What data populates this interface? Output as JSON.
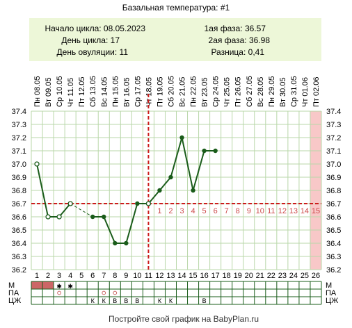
{
  "title": "Базальная температура: #1",
  "info": {
    "cycle_start": "Начало цикла: 08.05.2023",
    "cycle_day": "День цикла: 17",
    "ovulation_day": "День овуляции: 11",
    "phase1": "1ая фаза: 36.57",
    "phase2": "2ая фаза: 36.98",
    "difference": "Разница: 0,41"
  },
  "colors": {
    "line": "#1a5c1a",
    "panel": "#edf7d8",
    "grid": "#b9d7a9",
    "dashed": "#cc1c1c",
    "menstruation": "#cc6666",
    "highlight": "#f8c8c8",
    "phase_numbers": "#cc4a4a"
  },
  "chart_data": {
    "type": "line",
    "title": "Базальная температура: #1",
    "x": [
      1,
      2,
      3,
      4,
      5,
      6,
      7,
      8,
      9,
      10,
      11,
      12,
      13,
      14,
      15,
      16,
      17,
      18,
      19,
      20,
      21,
      22,
      23,
      24,
      25,
      26
    ],
    "dates": [
      "08.05",
      "09.05",
      "10.05",
      "11.05",
      "12.05",
      "13.05",
      "14.05",
      "15.05",
      "16.05",
      "17.05",
      "18.05",
      "19.05",
      "20.05",
      "21.05",
      "22.05",
      "23.05",
      "24.05",
      "25.05",
      "26.05",
      "27.05",
      "28.05",
      "29.05",
      "30.05",
      "31.05",
      "01.06",
      "02.06"
    ],
    "weekdays": [
      "Пн",
      "Вт",
      "Ср",
      "Чт",
      "Пт",
      "Сб",
      "Вс",
      "Пн",
      "Вт",
      "Ср",
      "Чт",
      "Пт",
      "Сб",
      "Вс",
      "Пн",
      "Вт",
      "Ср",
      "Чт",
      "Пт",
      "Сб",
      "Вс",
      "Пн",
      "Вт",
      "Ср",
      "Чт",
      "Пт"
    ],
    "values": [
      37.0,
      36.6,
      36.6,
      36.7,
      null,
      36.6,
      36.6,
      36.4,
      36.4,
      36.7,
      36.7,
      36.8,
      36.9,
      37.2,
      36.8,
      37.1,
      37.1,
      null,
      null,
      null,
      null,
      null,
      null,
      null,
      null,
      null
    ],
    "open_points": [
      1,
      2,
      3,
      4,
      11
    ],
    "dashed_segments": [
      [
        4,
        6
      ]
    ],
    "yticks": [
      "37.4",
      "37.3",
      "37.2",
      "37.1",
      "37.0",
      "36.9",
      "36.8",
      "36.7",
      "36.6",
      "36.5",
      "36.4",
      "36.3",
      "36.2"
    ],
    "ylim": [
      36.2,
      37.4
    ],
    "coverline": 36.7,
    "ovulation_day": 11,
    "highlight_day": 26,
    "phase_numbers": [
      "1",
      "2",
      "3",
      "4",
      "5",
      "6",
      "7",
      "8",
      "9",
      "10",
      "11",
      "12",
      "13",
      "14",
      "15"
    ],
    "phase_start_day": 12,
    "grid": true
  },
  "rows": {
    "labels": [
      "М",
      "ПА",
      "ЦЖ"
    ],
    "m": [
      "bar",
      "bar",
      "*",
      "*",
      "",
      "",
      "",
      "",
      "",
      "",
      "",
      "",
      "",
      "",
      "",
      "",
      "",
      "",
      "",
      "",
      "",
      "",
      "",
      "",
      "",
      ""
    ],
    "pa": [
      "",
      "",
      "о",
      "",
      "",
      "",
      "о",
      "о",
      "",
      "",
      "",
      "",
      "",
      "",
      "",
      "",
      "",
      "",
      "",
      "",
      "",
      "",
      "",
      "",
      "",
      ""
    ],
    "czh": [
      "",
      "",
      "",
      "",
      "",
      "К",
      "К",
      "В",
      "В",
      "В",
      "",
      "К",
      "К",
      "",
      "",
      "В",
      "",
      "",
      "",
      "",
      "",
      "",
      "",
      "",
      "",
      ""
    ]
  },
  "footer": "Постройте свой график на BabyPlan.ru"
}
